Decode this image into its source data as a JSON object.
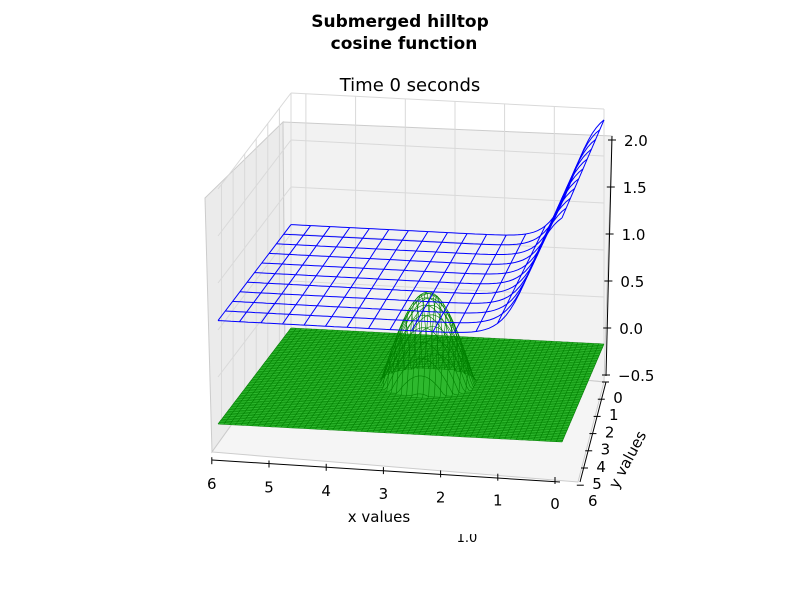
{
  "chart_data": {
    "type": "wireframe3d",
    "title": [
      "Submerged hilltop",
      "cosine function"
    ],
    "subtitle": "Time 0 seconds",
    "xlabel": "x values",
    "ylabel": "y values",
    "stray_label": "1.0",
    "x_ticks": [
      "0",
      "1",
      "2",
      "3",
      "4",
      "5",
      "6"
    ],
    "y_ticks": [
      "0",
      "1",
      "2",
      "3",
      "4",
      "5",
      "6"
    ],
    "z_ticks": [
      "−0.5",
      "0.0",
      "0.5",
      "1.0",
      "1.5",
      "2.0"
    ],
    "xlim": [
      0,
      6.3
    ],
    "ylim": [
      0,
      6.3
    ],
    "zlim": [
      -0.5,
      2.0
    ],
    "grid": true,
    "series": [
      {
        "kind": "water-surface",
        "color": "#0000ff",
        "base_level": 0.6,
        "wave_amplitude": 1.4,
        "wave_front_x": 0.6,
        "wave_width": 0.5
      },
      {
        "kind": "bottom-terrain",
        "color": "#008000",
        "face_color": "#2eb82e",
        "floor_level": -0.5,
        "hill_center": [
          3.0,
          3.0
        ],
        "hill_radius": 0.9,
        "hill_height": 0.4
      }
    ]
  }
}
